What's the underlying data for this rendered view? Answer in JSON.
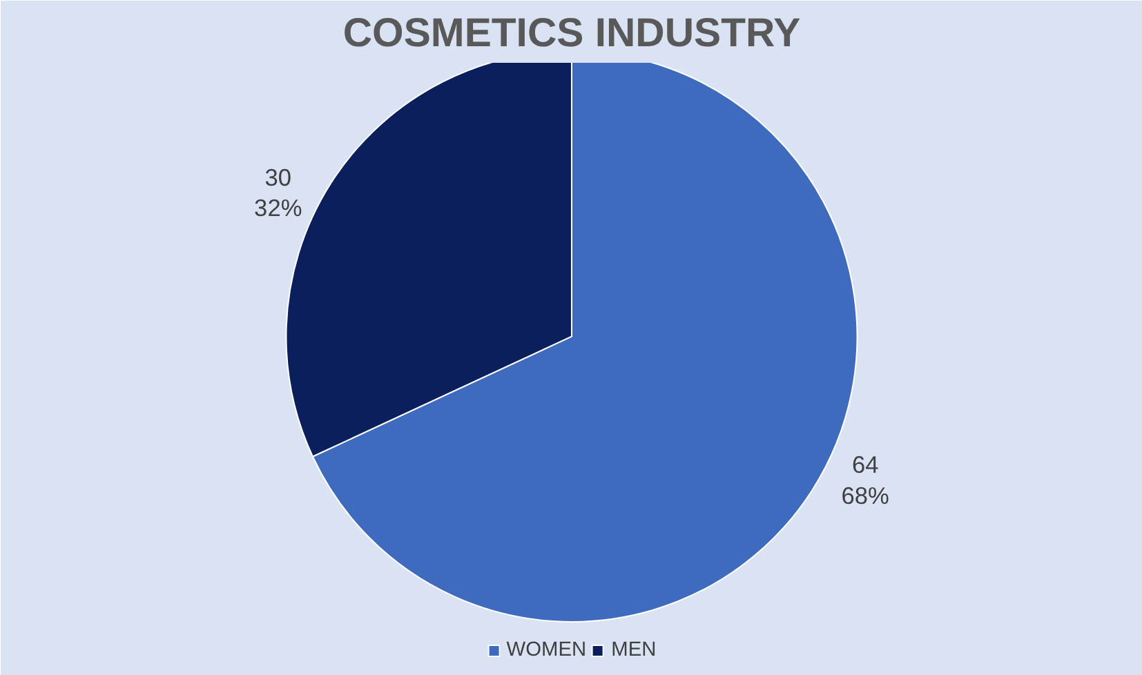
{
  "chart_data": {
    "type": "pie",
    "title": "COSMETICS INDUSTRY",
    "categories": [
      "WOMEN",
      "MEN"
    ],
    "values": [
      64,
      30
    ],
    "colors": [
      "#3f6bbf",
      "#0a1f5c"
    ],
    "value_labels": [
      "64\n68%",
      "30\n32%"
    ],
    "legend": "bottom"
  }
}
